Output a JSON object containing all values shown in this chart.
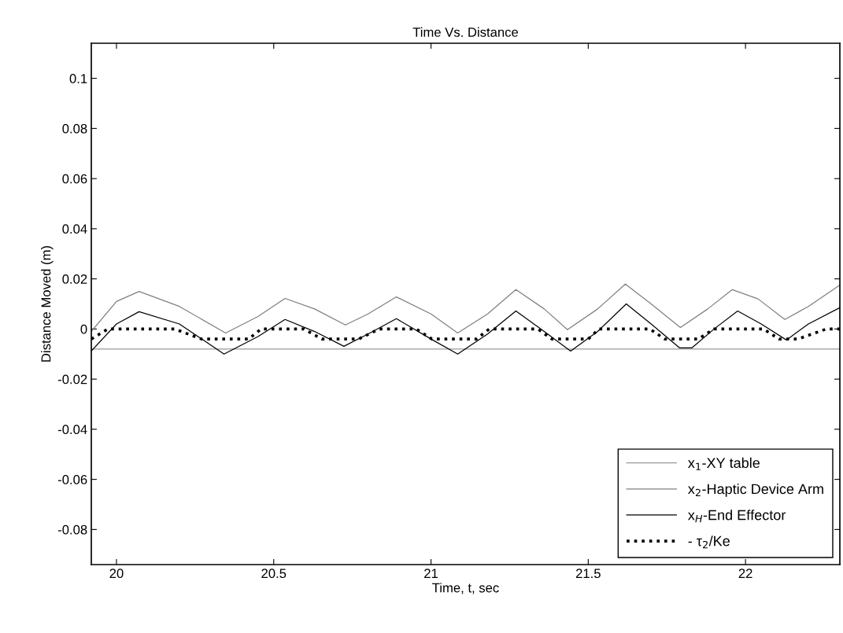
{
  "chart_data": {
    "type": "line",
    "title": "Time Vs. Distance",
    "xlabel": "Time, t, sec",
    "ylabel": "Distance Moved (m)",
    "xlim": [
      19.92,
      22.3
    ],
    "xticks": [
      20,
      20.5,
      21,
      21.5,
      22
    ],
    "ylim": [
      -0.094,
      0.114
    ],
    "yticks": [
      -0.08,
      -0.06,
      -0.04,
      -0.02,
      0,
      0.02,
      0.04,
      0.06,
      0.08,
      0.1
    ],
    "grid": false,
    "legend": "bottom right",
    "series": [
      {
        "name": "x$_{1}$-XY table",
        "color": "#999999",
        "line_style": "solid",
        "x": [
          19.92,
          22.3
        ],
        "values": [
          -0.008,
          -0.008
        ]
      },
      {
        "name": "x$_{2}$-Haptic Device Arm",
        "color": "#808080",
        "line_style": "solid",
        "x": [
          19.92,
          20.0,
          20.072,
          20.2,
          20.347,
          20.45,
          20.536,
          20.63,
          20.728,
          20.8,
          20.89,
          21.0,
          21.085,
          21.18,
          21.27,
          21.36,
          21.434,
          21.53,
          21.618,
          21.7,
          21.793,
          21.88,
          21.958,
          22.04,
          22.125,
          22.2,
          22.3
        ],
        "values": [
          -0.001,
          0.011,
          0.015,
          0.009,
          -0.0016,
          0.005,
          0.0122,
          0.008,
          0.0016,
          0.006,
          0.0128,
          0.006,
          -0.0016,
          0.006,
          0.0157,
          0.008,
          -0.0003,
          0.008,
          0.0179,
          0.01,
          0.0006,
          0.008,
          0.0157,
          0.012,
          0.0038,
          0.009,
          0.0175
        ]
      },
      {
        "name": "x$_{H}$-End Effector",
        "color": "#000000",
        "line_style": "solid",
        "x": [
          19.92,
          20.0,
          20.072,
          20.2,
          20.342,
          20.45,
          20.536,
          20.63,
          20.723,
          20.8,
          20.89,
          21.0,
          21.085,
          21.18,
          21.27,
          21.36,
          21.444,
          21.53,
          21.621,
          21.7,
          21.79,
          21.83,
          21.9,
          21.975,
          22.05,
          22.13,
          22.2,
          22.3
        ],
        "values": [
          -0.0088,
          0.002,
          0.0069,
          0.002,
          -0.01,
          -0.003,
          0.0038,
          -0.001,
          -0.0069,
          -0.002,
          0.0041,
          -0.004,
          -0.01,
          -0.002,
          0.0072,
          -0.001,
          -0.0088,
          -0.001,
          0.01,
          0.002,
          -0.0075,
          -0.0075,
          0.0,
          0.0072,
          0.002,
          -0.0044,
          0.002,
          0.0085
        ]
      },
      {
        "name": "- τ$_{2}$/Ke",
        "color": "#000000",
        "line_style": "dotted",
        "x": [
          19.92,
          19.973,
          20.185,
          20.27,
          20.42,
          20.46,
          20.596,
          20.653,
          20.77,
          20.836,
          20.953,
          21.003,
          21.145,
          21.185,
          21.34,
          21.384,
          21.5,
          21.534,
          21.696,
          21.743,
          21.85,
          21.9,
          22.057,
          22.107,
          22.167,
          22.257,
          22.3
        ],
        "values": [
          -0.004,
          0,
          0,
          -0.004,
          -0.004,
          0,
          0,
          -0.004,
          -0.004,
          0,
          0,
          -0.004,
          -0.004,
          0,
          0,
          -0.004,
          -0.004,
          0,
          0,
          -0.004,
          -0.004,
          0,
          0,
          -0.004,
          -0.004,
          0,
          0
        ]
      }
    ]
  }
}
